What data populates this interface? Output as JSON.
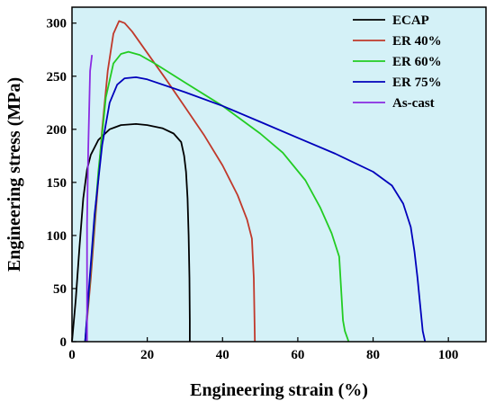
{
  "chart_data": {
    "type": "line",
    "title": "",
    "xlabel": "Engineering strain (%)",
    "ylabel": "Engineering stress (MPa)",
    "xlim": [
      0,
      110
    ],
    "ylim": [
      0,
      315
    ],
    "x_ticks": [
      0,
      20,
      40,
      60,
      80,
      100
    ],
    "y_ticks": [
      0,
      50,
      100,
      150,
      200,
      250,
      300
    ],
    "grid": false,
    "legend_position": "top-right",
    "background_color": "#d4f1f7",
    "series": [
      {
        "name": "ECAP",
        "color": "#000000",
        "points": [
          [
            0,
            0
          ],
          [
            1,
            40
          ],
          [
            2,
            90
          ],
          [
            3,
            135
          ],
          [
            4,
            162
          ],
          [
            5,
            176
          ],
          [
            7,
            190
          ],
          [
            10,
            200
          ],
          [
            13,
            204
          ],
          [
            17,
            205
          ],
          [
            20,
            204
          ],
          [
            24,
            201
          ],
          [
            27,
            196
          ],
          [
            29,
            188
          ],
          [
            29.8,
            175
          ],
          [
            30.3,
            160
          ],
          [
            30.7,
            135
          ],
          [
            31.0,
            100
          ],
          [
            31.2,
            60
          ],
          [
            31.3,
            20
          ],
          [
            31.3,
            0
          ]
        ]
      },
      {
        "name": "ER 40%",
        "color": "#c0392b",
        "points": [
          [
            3.5,
            0
          ],
          [
            5,
            60
          ],
          [
            6.5,
            130
          ],
          [
            8,
            200
          ],
          [
            9.5,
            255
          ],
          [
            11,
            290
          ],
          [
            12.5,
            302
          ],
          [
            14,
            300
          ],
          [
            16,
            292
          ],
          [
            20,
            272
          ],
          [
            25,
            247
          ],
          [
            30,
            221
          ],
          [
            35,
            195
          ],
          [
            40,
            166
          ],
          [
            44,
            138
          ],
          [
            46.5,
            115
          ],
          [
            47.8,
            97
          ],
          [
            48.3,
            60
          ],
          [
            48.5,
            20
          ],
          [
            48.6,
            0
          ]
        ]
      },
      {
        "name": "ER 60%",
        "color": "#22cc22",
        "points": [
          [
            3.5,
            0
          ],
          [
            5,
            70
          ],
          [
            7,
            160
          ],
          [
            9,
            230
          ],
          [
            11,
            262
          ],
          [
            13,
            271
          ],
          [
            15,
            273
          ],
          [
            18,
            270
          ],
          [
            22,
            262
          ],
          [
            30,
            244
          ],
          [
            40,
            222
          ],
          [
            50,
            196
          ],
          [
            56,
            178
          ],
          [
            62,
            152
          ],
          [
            66,
            126
          ],
          [
            69,
            102
          ],
          [
            71,
            80
          ],
          [
            71.5,
            50
          ],
          [
            72,
            20
          ],
          [
            72.5,
            10
          ],
          [
            73.5,
            0
          ]
        ]
      },
      {
        "name": "ER 75%",
        "color": "#0000bb",
        "points": [
          [
            3.5,
            0
          ],
          [
            4.5,
            50
          ],
          [
            6,
            120
          ],
          [
            8,
            185
          ],
          [
            10,
            225
          ],
          [
            12,
            242
          ],
          [
            14,
            248
          ],
          [
            17,
            249
          ],
          [
            20,
            247
          ],
          [
            30,
            235
          ],
          [
            40,
            222
          ],
          [
            50,
            207
          ],
          [
            60,
            192
          ],
          [
            70,
            177
          ],
          [
            80,
            160
          ],
          [
            85,
            147
          ],
          [
            88,
            130
          ],
          [
            90,
            108
          ],
          [
            91,
            85
          ],
          [
            91.8,
            60
          ],
          [
            92.5,
            35
          ],
          [
            93.2,
            10
          ],
          [
            93.8,
            0
          ]
        ]
      },
      {
        "name": "As-cast",
        "color": "#8a2be2",
        "points": [
          [
            4,
            0
          ],
          [
            4,
            110
          ],
          [
            4.3,
            180
          ],
          [
            4.8,
            255
          ],
          [
            5.3,
            270
          ]
        ]
      }
    ]
  }
}
